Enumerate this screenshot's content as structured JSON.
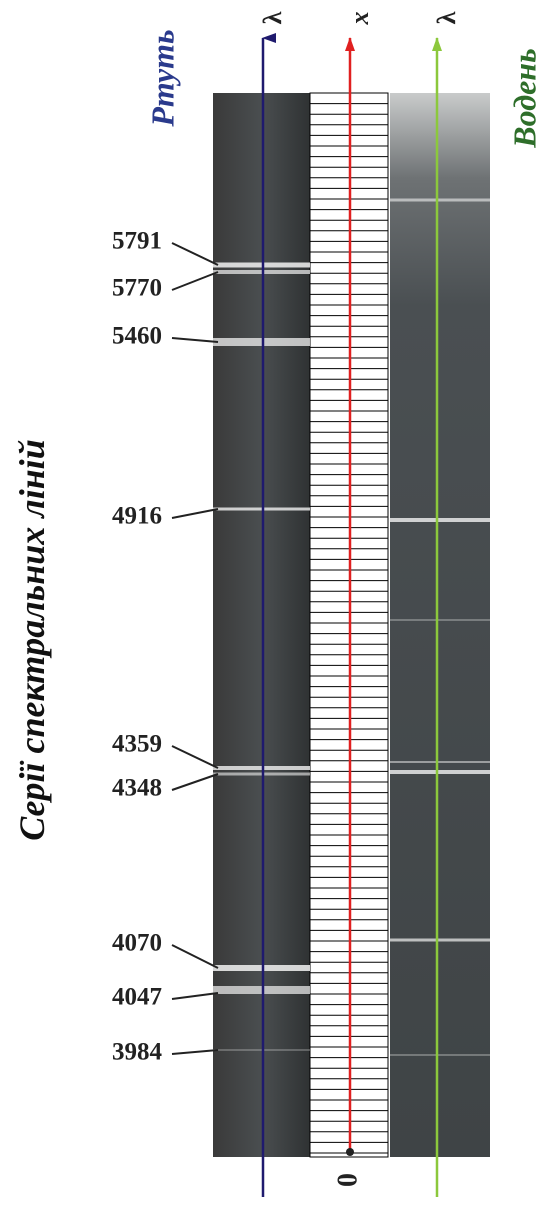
{
  "title": "Серії спектральних ліній",
  "mercury": {
    "name": "Ртуть",
    "axis": "λ",
    "lines": [
      5791,
      5770,
      5460,
      4916,
      4359,
      4348,
      4070,
      4047,
      3984
    ]
  },
  "scale": {
    "axis": "x",
    "origin": "0"
  },
  "hydrogen": {
    "name": "Водень",
    "axis": "λ"
  }
}
